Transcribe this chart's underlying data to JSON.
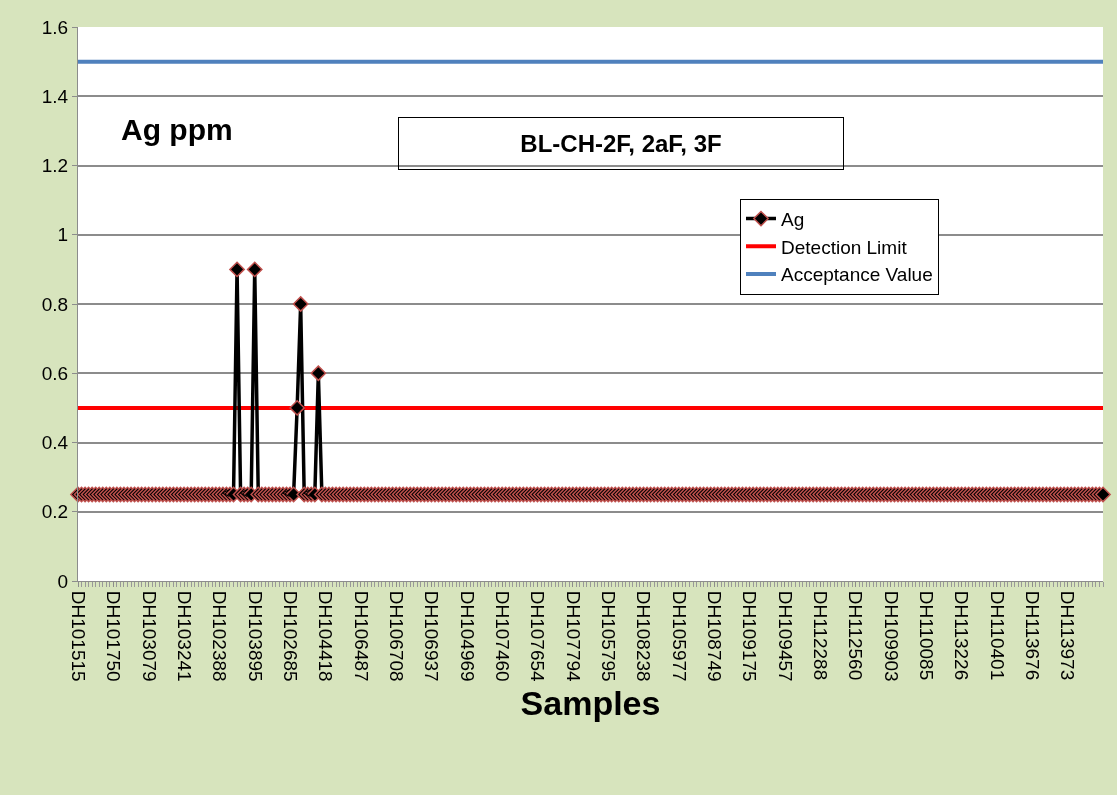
{
  "chart_data": {
    "type": "line",
    "xlabel": "Samples",
    "annotations": [
      "Ag ppm",
      "BL-CH-2F, 2aF, 3F"
    ],
    "categories": [
      "DH101515",
      null,
      null,
      null,
      null,
      null,
      null,
      null,
      null,
      null,
      "DH101750",
      null,
      null,
      null,
      null,
      null,
      null,
      null,
      null,
      null,
      "DH103079",
      null,
      null,
      null,
      null,
      null,
      null,
      null,
      null,
      null,
      "DH103241",
      null,
      null,
      null,
      null,
      null,
      null,
      null,
      null,
      null,
      "DH102388",
      null,
      null,
      null,
      null,
      null,
      null,
      null,
      null,
      null,
      "DH103895",
      null,
      null,
      null,
      null,
      null,
      null,
      null,
      null,
      null,
      "DH102685",
      null,
      null,
      null,
      null,
      null,
      null,
      null,
      null,
      null,
      "DH104418",
      null,
      null,
      null,
      null,
      null,
      null,
      null,
      null,
      null,
      "DH106487",
      null,
      null,
      null,
      null,
      null,
      null,
      null,
      null,
      null,
      "DH106708",
      null,
      null,
      null,
      null,
      null,
      null,
      null,
      null,
      null,
      "DH106937",
      null,
      null,
      null,
      null,
      null,
      null,
      null,
      null,
      null,
      "DH104969",
      null,
      null,
      null,
      null,
      null,
      null,
      null,
      null,
      null,
      "DH107460",
      null,
      null,
      null,
      null,
      null,
      null,
      null,
      null,
      null,
      "DH107654",
      null,
      null,
      null,
      null,
      null,
      null,
      null,
      null,
      null,
      "DH107794",
      null,
      null,
      null,
      null,
      null,
      null,
      null,
      null,
      null,
      "DH105795",
      null,
      null,
      null,
      null,
      null,
      null,
      null,
      null,
      null,
      "DH108238",
      null,
      null,
      null,
      null,
      null,
      null,
      null,
      null,
      null,
      "DH105977",
      null,
      null,
      null,
      null,
      null,
      null,
      null,
      null,
      null,
      "DH108749",
      null,
      null,
      null,
      null,
      null,
      null,
      null,
      null,
      null,
      "DH109175",
      null,
      null,
      null,
      null,
      null,
      null,
      null,
      null,
      null,
      "DH109457",
      null,
      null,
      null,
      null,
      null,
      null,
      null,
      null,
      null,
      "DH112288",
      null,
      null,
      null,
      null,
      null,
      null,
      null,
      null,
      null,
      "DH112560",
      null,
      null,
      null,
      null,
      null,
      null,
      null,
      null,
      null,
      "DH109903",
      null,
      null,
      null,
      null,
      null,
      null,
      null,
      null,
      null,
      "DH110085",
      null,
      null,
      null,
      null,
      null,
      null,
      null,
      null,
      null,
      "DH113226",
      null,
      null,
      null,
      null,
      null,
      null,
      null,
      null,
      null,
      "DH110401",
      null,
      null,
      null,
      null,
      null,
      null,
      null,
      null,
      null,
      "DH113676",
      null,
      null,
      null,
      null,
      null,
      null,
      null,
      null,
      null,
      "DH113973",
      null,
      null,
      null,
      null,
      null,
      null,
      null,
      null,
      null,
      null
    ],
    "series": [
      {
        "name": "Ag",
        "color": "#000000",
        "values": [
          0.25,
          0.25,
          0.25,
          0.25,
          0.25,
          0.25,
          0.25,
          0.25,
          0.25,
          0.25,
          0.25,
          0.25,
          0.25,
          0.25,
          0.25,
          0.25,
          0.25,
          0.25,
          0.25,
          0.25,
          0.25,
          0.25,
          0.25,
          0.25,
          0.25,
          0.25,
          0.25,
          0.25,
          0.25,
          0.25,
          0.25,
          0.25,
          0.25,
          0.25,
          0.25,
          0.25,
          0.25,
          0.25,
          0.25,
          0.25,
          0.25,
          0.25,
          0.25,
          0.25,
          0.25,
          0.9,
          0.25,
          0.25,
          0.25,
          0.25,
          0.9,
          0.25,
          0.25,
          0.25,
          0.25,
          0.25,
          0.25,
          0.25,
          0.25,
          0.25,
          0.25,
          0.25,
          0.5,
          0.8,
          0.25,
          0.25,
          0.25,
          0.25,
          0.6,
          0.25,
          0.25,
          0.25,
          0.25,
          0.25,
          0.25,
          0.25,
          0.25,
          0.25,
          0.25,
          0.25,
          0.25,
          0.25,
          0.25,
          0.25,
          0.25,
          0.25,
          0.25,
          0.25,
          0.25,
          0.25,
          0.25,
          0.25,
          0.25,
          0.25,
          0.25,
          0.25,
          0.25,
          0.25,
          0.25,
          0.25,
          0.25,
          0.25,
          0.25,
          0.25,
          0.25,
          0.25,
          0.25,
          0.25,
          0.25,
          0.25,
          0.25,
          0.25,
          0.25,
          0.25,
          0.25,
          0.25,
          0.25,
          0.25,
          0.25,
          0.25,
          0.25,
          0.25,
          0.25,
          0.25,
          0.25,
          0.25,
          0.25,
          0.25,
          0.25,
          0.25,
          0.25,
          0.25,
          0.25,
          0.25,
          0.25,
          0.25,
          0.25,
          0.25,
          0.25,
          0.25,
          0.25,
          0.25,
          0.25,
          0.25,
          0.25,
          0.25,
          0.25,
          0.25,
          0.25,
          0.25,
          0.25,
          0.25,
          0.25,
          0.25,
          0.25,
          0.25,
          0.25,
          0.25,
          0.25,
          0.25,
          0.25,
          0.25,
          0.25,
          0.25,
          0.25,
          0.25,
          0.25,
          0.25,
          0.25,
          0.25,
          0.25,
          0.25,
          0.25,
          0.25,
          0.25,
          0.25,
          0.25,
          0.25,
          0.25,
          0.25,
          0.25,
          0.25,
          0.25,
          0.25,
          0.25,
          0.25,
          0.25,
          0.25,
          0.25,
          0.25,
          0.25,
          0.25,
          0.25,
          0.25,
          0.25,
          0.25,
          0.25,
          0.25,
          0.25,
          0.25,
          0.25,
          0.25,
          0.25,
          0.25,
          0.25,
          0.25,
          0.25,
          0.25,
          0.25,
          0.25,
          0.25,
          0.25,
          0.25,
          0.25,
          0.25,
          0.25,
          0.25,
          0.25,
          0.25,
          0.25,
          0.25,
          0.25,
          0.25,
          0.25,
          0.25,
          0.25,
          0.25,
          0.25,
          0.25,
          0.25,
          0.25,
          0.25,
          0.25,
          0.25,
          0.25,
          0.25,
          0.25,
          0.25,
          0.25,
          0.25,
          0.25,
          0.25,
          0.25,
          0.25,
          0.25,
          0.25,
          0.25,
          0.25,
          0.25,
          0.25,
          0.25,
          0.25,
          0.25,
          0.25,
          0.25,
          0.25,
          0.25,
          0.25,
          0.25,
          0.25,
          0.25,
          0.25,
          0.25,
          0.25,
          0.25,
          0.25,
          0.25,
          0.25,
          0.25,
          0.25,
          0.25,
          0.25,
          0.25,
          0.25,
          0.25,
          0.25,
          0.25,
          0.25,
          0.25,
          0.25,
          0.25,
          0.25,
          0.25,
          0.25,
          0.25,
          0.25,
          0.25,
          0.25,
          0.25,
          0.25,
          0.25
        ],
        "value_labels": [
          null,
          null,
          null,
          null,
          null,
          null,
          null,
          null,
          null,
          null,
          null,
          null,
          null,
          null,
          null,
          null,
          null,
          null,
          null,
          null,
          null,
          null,
          null,
          null,
          null,
          null,
          null,
          null,
          null,
          null,
          null,
          null,
          null,
          null,
          null,
          null,
          null,
          null,
          null,
          null,
          null,
          null,
          null,
          "<",
          null,
          null,
          null,
          null,
          "<",
          null,
          null,
          null,
          null,
          null,
          null,
          null,
          null,
          null,
          null,
          null,
          "<",
          null,
          null,
          null,
          null,
          null,
          "<",
          null,
          null,
          null,
          null,
          null,
          null,
          null,
          null,
          null,
          null,
          null,
          null,
          null,
          null,
          null,
          null,
          null,
          null,
          null,
          null,
          null,
          null,
          null,
          null,
          null,
          null,
          null,
          null,
          null,
          null,
          null,
          null,
          null,
          null,
          null,
          null,
          null,
          null,
          null,
          null,
          null,
          null,
          null,
          null,
          null,
          null,
          null,
          null,
          null,
          null,
          null,
          null,
          null,
          null,
          null,
          null,
          null,
          null,
          null,
          null,
          null,
          null,
          null,
          null,
          null,
          null,
          null,
          null,
          null,
          null,
          null,
          null,
          null,
          null,
          null,
          null,
          null,
          null,
          null,
          null,
          null,
          null,
          null,
          null,
          null,
          null,
          null,
          null,
          null,
          null,
          null,
          null,
          null,
          null,
          null,
          null,
          null,
          null,
          null,
          null,
          null,
          null,
          null,
          null,
          null,
          null,
          null,
          null,
          null,
          null,
          null,
          null,
          null,
          null,
          null,
          null,
          null,
          null,
          null,
          null,
          null,
          null,
          null,
          null,
          null,
          null,
          null,
          null,
          null,
          null,
          null,
          null,
          null,
          null,
          null,
          null,
          null,
          null,
          null,
          null,
          null,
          null,
          null,
          null,
          null,
          null,
          null,
          null,
          null,
          null,
          null,
          null,
          null,
          null,
          null,
          null,
          null,
          null,
          null,
          null,
          null,
          null,
          null,
          null,
          null,
          null,
          null,
          null,
          null,
          null,
          null,
          null,
          null,
          null,
          null,
          null,
          null,
          null,
          null,
          null,
          null,
          null,
          null,
          null,
          null,
          null,
          null,
          null,
          null,
          null,
          null,
          null,
          null,
          null,
          null,
          null,
          null,
          null,
          null,
          null,
          null,
          null,
          null,
          null,
          null,
          null,
          null,
          null,
          null,
          null,
          null,
          null,
          null,
          null,
          null,
          null,
          null,
          null,
          null,
          null,
          null,
          null,
          null,
          null
        ]
      }
    ],
    "ref_lines": [
      {
        "axis": "y",
        "value": 0.5,
        "label": "Detection Limit",
        "color": "#ff0000"
      },
      {
        "axis": "y",
        "value": 1.5,
        "label": "Acceptance Value",
        "color": "#4f81bd"
      }
    ],
    "ylim": [
      0,
      1.6
    ],
    "yticks": [
      0,
      0.2,
      0.4,
      0.6,
      0.8,
      1,
      1.2,
      1.4,
      1.6
    ],
    "grid": "y",
    "legend": "top right",
    "marker": "diamond",
    "line_style": "solid"
  }
}
